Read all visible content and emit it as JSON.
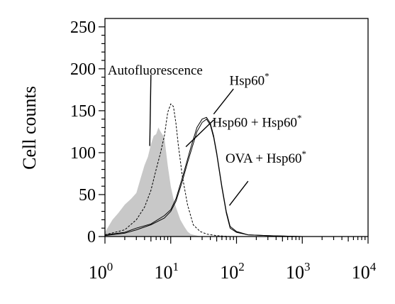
{
  "chart_data": {
    "type": "area",
    "ylabel": "Cell counts",
    "xlabel": "",
    "xscale": "log",
    "xlim": [
      1,
      10000
    ],
    "ylim": [
      0,
      260
    ],
    "grid": false,
    "y_ticks": [
      {
        "value": 0,
        "label": "0"
      },
      {
        "value": 50,
        "label": "50"
      },
      {
        "value": 100,
        "label": "100"
      },
      {
        "value": 150,
        "label": "150"
      },
      {
        "value": 200,
        "label": "200"
      },
      {
        "value": 250,
        "label": "250"
      }
    ],
    "x_ticks": [
      {
        "value": 1,
        "base": "10",
        "exp": "0"
      },
      {
        "value": 10,
        "base": "10",
        "exp": "1"
      },
      {
        "value": 100,
        "base": "10",
        "exp": "2"
      },
      {
        "value": 1000,
        "base": "10",
        "exp": "3"
      },
      {
        "value": 10000,
        "base": "10",
        "exp": "4"
      }
    ],
    "series": [
      {
        "name": "Autofluorescence",
        "style": "filled",
        "color": "#c8c8c8",
        "x": [
          1,
          1.3,
          1.6,
          2,
          2.5,
          3,
          3.5,
          4,
          4.5,
          5,
          5.5,
          6,
          6.5,
          7,
          8,
          9,
          10,
          11,
          12,
          14,
          16,
          18,
          20,
          25,
          30,
          40
        ],
        "y": [
          5,
          20,
          28,
          38,
          45,
          52,
          70,
          85,
          95,
          110,
          120,
          122,
          130,
          125,
          118,
          85,
          60,
          45,
          35,
          20,
          12,
          6,
          3,
          1,
          0,
          0
        ]
      },
      {
        "name": "Hsp60 + Hsp60*",
        "style": "dashed",
        "color": "#000000",
        "x": [
          1,
          2,
          3,
          4,
          5,
          6,
          7,
          8,
          9,
          10,
          11,
          12,
          13,
          15,
          18,
          22,
          28,
          35,
          50,
          80,
          150
        ],
        "y": [
          2,
          8,
          20,
          35,
          55,
          80,
          100,
          120,
          148,
          158,
          155,
          135,
          110,
          72,
          38,
          14,
          6,
          3,
          1,
          0,
          0
        ]
      },
      {
        "name": "OVA + Hsp60*",
        "style": "solid",
        "color": "#000000",
        "x": [
          1,
          2,
          3,
          5,
          8,
          10,
          12,
          15,
          18,
          20,
          25,
          30,
          35,
          40,
          45,
          50,
          60,
          70,
          80,
          100,
          150,
          300,
          1000,
          10000
        ],
        "y": [
          2,
          5,
          10,
          15,
          25,
          32,
          45,
          70,
          92,
          105,
          130,
          140,
          142,
          135,
          120,
          100,
          60,
          30,
          12,
          6,
          2,
          1,
          0,
          0
        ]
      },
      {
        "name": "Hsp60*",
        "style": "solid",
        "color": "#000000",
        "x": [
          1,
          2,
          3,
          5,
          8,
          10,
          12,
          15,
          18,
          20,
          25,
          30,
          35,
          40,
          45,
          50,
          60,
          70,
          80,
          100,
          150,
          300,
          1000,
          10000
        ],
        "y": [
          1,
          4,
          8,
          14,
          22,
          30,
          42,
          66,
          88,
          100,
          125,
          136,
          140,
          133,
          118,
          98,
          58,
          28,
          10,
          5,
          2,
          1,
          0,
          0
        ]
      }
    ],
    "annotations": [
      {
        "id": "autofluorescence",
        "label": "Autofluorescence",
        "sup": "",
        "text_x": 1.1,
        "text_y": 193,
        "line_from": [
          5,
          193
        ],
        "line_to": [
          4.8,
          108
        ]
      },
      {
        "id": "hsp60-star",
        "label": "Hsp60",
        "sup": "*",
        "text_x": 78,
        "text_y": 181,
        "line_from": [
          90,
          176
        ],
        "line_to": [
          45,
          146
        ]
      },
      {
        "id": "hsp60-plus-hsp60-star",
        "label": "Hsp60 + Hsp60",
        "sup": "*",
        "text_x": 43,
        "text_y": 131,
        "line_from": [
          45,
          139
        ],
        "line_to": [
          17,
          107
        ]
      },
      {
        "id": "ova-plus-hsp60-star",
        "label": "OVA  + Hsp60",
        "sup": "*",
        "text_x": 68,
        "text_y": 88,
        "line_from": [
          150,
          66
        ],
        "line_to": [
          78,
          37
        ]
      }
    ]
  }
}
